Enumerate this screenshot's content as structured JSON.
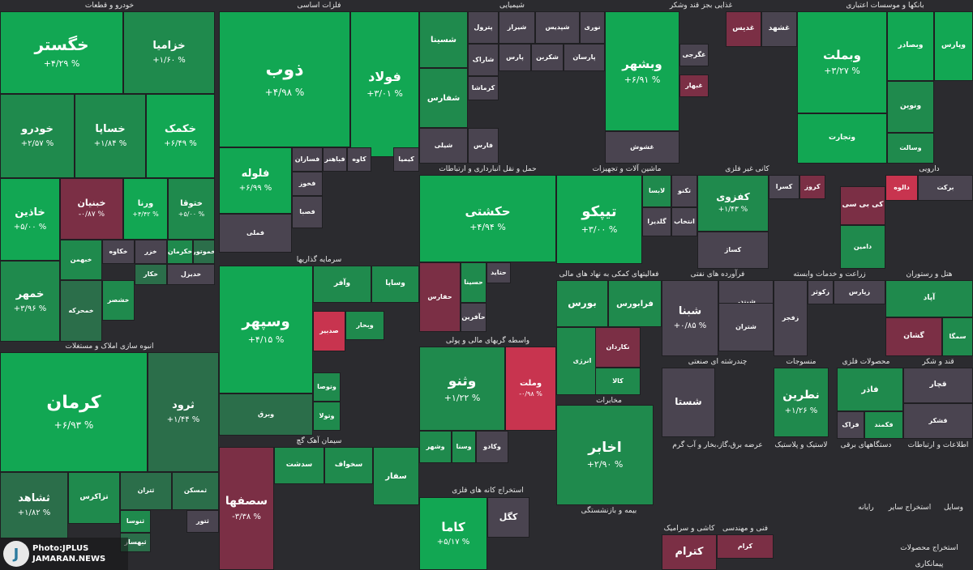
{
  "chart_data": {
    "type": "treemap",
    "colors": {
      "strong_up": "#12a753",
      "mid_up": "#1f8a4d",
      "light_up": "#2b6e4a",
      "neutral": "#4a4450",
      "down": "#7b2f45",
      "strong_down": "#c8344f",
      "background": "#2b2b2f"
    },
    "sectors": [
      {
        "title": "بانکها و موسسات اعتباری"
      },
      {
        "title": "غذایی بجز قند وشکر"
      },
      {
        "title": "شیمیایی"
      },
      {
        "title": "فلزات اساسی"
      },
      {
        "title": "خودرو و قطعات"
      },
      {
        "title": "دارویی"
      },
      {
        "title": "کانی غیر فلزی"
      },
      {
        "title": "ماشین آلات و تجهیزات"
      },
      {
        "title": "حمل و نقل انبارداری و ارتباطات"
      },
      {
        "title": "سرمایه گذاریها"
      },
      {
        "title": "انبوه سازی املاک و مستغلات"
      },
      {
        "title": "هتل و رستوران"
      },
      {
        "title": "زراعت و خدمات وابسته"
      },
      {
        "title": "فرآورده های نفتی"
      },
      {
        "title": "فعالیتهای کمکی به نهاد های مالی"
      },
      {
        "title": "واسطه گریهای مالی و پولی"
      },
      {
        "title": "محصولات فلزی"
      },
      {
        "title": "منسوجات"
      },
      {
        "title": "چندرشته ای صنعتی"
      },
      {
        "title": "قند و شکر"
      },
      {
        "title": "مخابرات"
      },
      {
        "title": "سیمان آهک گچ"
      },
      {
        "title": "اطلاعات و ارتباطات"
      },
      {
        "title": "دستگاههای برقی"
      },
      {
        "title": "لاستیک و پلاستیک"
      },
      {
        "title": "عرضه برق،گاز،بخار و آب گرم"
      },
      {
        "title": "استخراج کانه های فلزی"
      },
      {
        "title": "بیمه و بازنشستگی"
      },
      {
        "title": "رایانه"
      },
      {
        "title": "استخراج سایر"
      },
      {
        "title": "وسایل"
      },
      {
        "title": "کاشی و سرامیک"
      },
      {
        "title": "فنی و مهندسی"
      },
      {
        "title": "استخراج محصولات"
      },
      {
        "title": "پیمانکاری"
      }
    ],
    "tiles": [
      {
        "name": "خگستر",
        "change": "+۴/۲۹ %",
        "color": "strong_up"
      },
      {
        "name": "خزامیا",
        "change": "+۱/۶۰ %",
        "color": "mid_up"
      },
      {
        "name": "خودرو",
        "change": "+۲/۵۷ %",
        "color": "mid_up"
      },
      {
        "name": "خساپا",
        "change": "+۱/۸۴ %",
        "color": "mid_up"
      },
      {
        "name": "خکمک",
        "change": "+۶/۴۹ %",
        "color": "strong_up"
      },
      {
        "name": "خاذین",
        "change": "+۵/۰۰ %",
        "color": "strong_up"
      },
      {
        "name": "خبنیان",
        "change": "-۰/۸۷ %",
        "color": "down"
      },
      {
        "name": "ورنا",
        "change": "+۴/۴۲ %",
        "color": "strong_up"
      },
      {
        "name": "ختوقا",
        "change": "+۵/۰۰ %",
        "color": "mid_up"
      },
      {
        "name": "خمهر",
        "change": "+۳/۹۶ %",
        "color": "mid_up"
      },
      {
        "name": "خبهمن",
        "change": "",
        "color": "mid_up"
      },
      {
        "name": "خکاوه",
        "change": "",
        "color": "neutral"
      },
      {
        "name": "خزر",
        "change": "",
        "color": "neutral"
      },
      {
        "name": "خکرمان",
        "change": "",
        "color": "mid_up"
      },
      {
        "name": "خموتور",
        "change": "",
        "color": "light_up"
      },
      {
        "name": "خکار",
        "change": "",
        "color": "light_up"
      },
      {
        "name": "خدیزل",
        "change": "",
        "color": "neutral"
      },
      {
        "name": "خمحرکه",
        "change": "",
        "color": "light_up"
      },
      {
        "name": "خشصر",
        "change": "",
        "color": "mid_up"
      },
      {
        "name": "ذوب",
        "change": "+۴/۹۸ %",
        "color": "strong_up"
      },
      {
        "name": "فولاد",
        "change": "+۳/۰۱ %",
        "color": "strong_up"
      },
      {
        "name": "فلوله",
        "change": "+۶/۹۹ %",
        "color": "strong_up"
      },
      {
        "name": "فسازان",
        "change": "",
        "color": "neutral"
      },
      {
        "name": "فباهنر",
        "change": "",
        "color": "neutral"
      },
      {
        "name": "کاوه",
        "change": "",
        "color": "neutral"
      },
      {
        "name": "کیمیا",
        "change": "",
        "color": "neutral"
      },
      {
        "name": "فخوز",
        "change": "",
        "color": "neutral"
      },
      {
        "name": "فصبا",
        "change": "",
        "color": "neutral"
      },
      {
        "name": "فملی",
        "change": "",
        "color": "neutral"
      },
      {
        "name": "شسینا",
        "change": "",
        "color": "mid_up"
      },
      {
        "name": "پترول",
        "change": "",
        "color": "neutral"
      },
      {
        "name": "شیراز",
        "change": "",
        "color": "neutral"
      },
      {
        "name": "شپدیس",
        "change": "",
        "color": "neutral"
      },
      {
        "name": "نوری",
        "change": "",
        "color": "neutral"
      },
      {
        "name": "شفارس",
        "change": "",
        "color": "mid_up"
      },
      {
        "name": "شاراک",
        "change": "",
        "color": "neutral"
      },
      {
        "name": "پارس",
        "change": "",
        "color": "neutral"
      },
      {
        "name": "شکربن",
        "change": "",
        "color": "neutral"
      },
      {
        "name": "پارسان",
        "change": "",
        "color": "neutral"
      },
      {
        "name": "کرماشا",
        "change": "",
        "color": "neutral"
      },
      {
        "name": "فارس",
        "change": "",
        "color": "neutral"
      },
      {
        "name": "شیلی",
        "change": "",
        "color": "neutral"
      },
      {
        "name": "وبشهر",
        "change": "+۶/۹۱ %",
        "color": "strong_up"
      },
      {
        "name": "غدیس",
        "change": "",
        "color": "down"
      },
      {
        "name": "غشهد",
        "change": "",
        "color": "neutral"
      },
      {
        "name": "غگرجی",
        "change": "",
        "color": "neutral"
      },
      {
        "name": "غبهار",
        "change": "",
        "color": "down"
      },
      {
        "name": "غشوش",
        "change": "",
        "color": "neutral"
      },
      {
        "name": "وبملت",
        "change": "+۳/۲۷ %",
        "color": "strong_up"
      },
      {
        "name": "وبصادر",
        "change": "",
        "color": "strong_up"
      },
      {
        "name": "وپارس",
        "change": "",
        "color": "strong_up"
      },
      {
        "name": "ونوین",
        "change": "",
        "color": "mid_up"
      },
      {
        "name": "وتجارت",
        "change": "",
        "color": "strong_up"
      },
      {
        "name": "وسالت",
        "change": "",
        "color": "mid_up"
      },
      {
        "name": "حکشتی",
        "change": "+۴/۹۴ %",
        "color": "strong_up"
      },
      {
        "name": "حفارس",
        "change": "",
        "color": "down"
      },
      {
        "name": "حسینا",
        "change": "",
        "color": "mid_up"
      },
      {
        "name": "حتاید",
        "change": "",
        "color": "neutral"
      },
      {
        "name": "حآفرین",
        "change": "",
        "color": "neutral"
      },
      {
        "name": "تیپکو",
        "change": "+۳/۰۰ %",
        "color": "strong_up"
      },
      {
        "name": "لابسا",
        "change": "",
        "color": "mid_up"
      },
      {
        "name": "تکنو",
        "change": "",
        "color": "neutral"
      },
      {
        "name": "گلدیرا",
        "change": "",
        "color": "neutral"
      },
      {
        "name": "انتخاب",
        "change": "",
        "color": "neutral"
      },
      {
        "name": "کفزوی",
        "change": "+۱/۴۳ %",
        "color": "mid_up"
      },
      {
        "name": "کساژ",
        "change": "",
        "color": "neutral"
      },
      {
        "name": "کسرا",
        "change": "",
        "color": "neutral"
      },
      {
        "name": "کروز",
        "change": "",
        "color": "down"
      },
      {
        "name": "دیران",
        "change": "",
        "color": "strong_down"
      },
      {
        "name": "کی بی سی",
        "change": "",
        "color": "down"
      },
      {
        "name": "دامین",
        "change": "",
        "color": "mid_up"
      },
      {
        "name": "برکت",
        "change": "",
        "color": "neutral"
      },
      {
        "name": "دالوه",
        "change": "",
        "color": "strong_down"
      },
      {
        "name": "کرمان",
        "change": "+۶/۹۳ %",
        "color": "strong_up"
      },
      {
        "name": "ثرود",
        "change": "+۱/۴۴ %",
        "color": "light_up"
      },
      {
        "name": "ثشاهد",
        "change": "+۱/۸۲ %",
        "color": "light_up"
      },
      {
        "name": "تزاکرس",
        "change": "",
        "color": "mid_up"
      },
      {
        "name": "ثنوسا",
        "change": "",
        "color": "mid_up"
      },
      {
        "name": "ثتران",
        "change": "",
        "color": "light_up"
      },
      {
        "name": "ثمسکن",
        "change": "",
        "color": "light_up"
      },
      {
        "name": "ثتور",
        "change": "",
        "color": "neutral"
      },
      {
        "name": "ثبهساز",
        "change": "",
        "color": "light_up"
      },
      {
        "name": "وسپهر",
        "change": "+۴/۱۵ %",
        "color": "strong_up"
      },
      {
        "name": "وآفر",
        "change": "",
        "color": "mid_up"
      },
      {
        "name": "وساپا",
        "change": "",
        "color": "mid_up"
      },
      {
        "name": "صدبیر",
        "change": "",
        "color": "strong_down"
      },
      {
        "name": "وبحار",
        "change": "",
        "color": "mid_up"
      },
      {
        "name": "وبرق",
        "change": "",
        "color": "light_up"
      },
      {
        "name": "وتوصا",
        "change": "",
        "color": "mid_up"
      },
      {
        "name": "وتولا",
        "change": "",
        "color": "mid_up"
      },
      {
        "name": "وثنو",
        "change": "+۱/۲۲ %",
        "color": "mid_up"
      },
      {
        "name": "وملت",
        "change": "-۰/۹۸ %",
        "color": "strong_down"
      },
      {
        "name": "وسنا",
        "change": "",
        "color": "mid_up"
      },
      {
        "name": "وشهر",
        "change": "",
        "color": "mid_up"
      },
      {
        "name": "وکادو",
        "change": "",
        "color": "neutral"
      },
      {
        "name": "بورس",
        "change": "",
        "color": "mid_up"
      },
      {
        "name": "فرابورس",
        "change": "",
        "color": "mid_up"
      },
      {
        "name": "اخابر",
        "change": "+۲/۹۰ %",
        "color": "mid_up"
      },
      {
        "name": "انرژی",
        "change": "",
        "color": "mid_up"
      },
      {
        "name": "نکاردان",
        "change": "",
        "color": "down"
      },
      {
        "name": "کالا",
        "change": "",
        "color": "mid_up"
      },
      {
        "name": "شبنا",
        "change": "+۰/۸۵ %",
        "color": "neutral"
      },
      {
        "name": "شبندر",
        "change": "",
        "color": "neutral"
      },
      {
        "name": "شتران",
        "change": "",
        "color": "neutral"
      },
      {
        "name": "زفجر",
        "change": "",
        "color": "neutral"
      },
      {
        "name": "زکوثر",
        "change": "",
        "color": "neutral"
      },
      {
        "name": "زپارس",
        "change": "",
        "color": "neutral"
      },
      {
        "name": "آپاد",
        "change": "",
        "color": "mid_up"
      },
      {
        "name": "گشان",
        "change": "",
        "color": "down"
      },
      {
        "name": "سمگا",
        "change": "",
        "color": "mid_up"
      },
      {
        "name": "شستا",
        "change": "",
        "color": "neutral"
      },
      {
        "name": "نطرین",
        "change": "+۱/۲۶ %",
        "color": "mid_up"
      },
      {
        "name": "فاذر",
        "change": "",
        "color": "mid_up"
      },
      {
        "name": "فکمند",
        "change": "",
        "color": "mid_up"
      },
      {
        "name": "فزاک",
        "change": "",
        "color": "neutral"
      },
      {
        "name": "قچار",
        "change": "",
        "color": "neutral"
      },
      {
        "name": "قشکر",
        "change": "",
        "color": "neutral"
      },
      {
        "name": "سصفها",
        "change": "-۳/۳۸ %",
        "color": "down"
      },
      {
        "name": "سدشت",
        "change": "",
        "color": "mid_up"
      },
      {
        "name": "سخواف",
        "change": "",
        "color": "mid_up"
      },
      {
        "name": "سفار",
        "change": "",
        "color": "mid_up"
      },
      {
        "name": "کاما",
        "change": "+۵/۱۷ %",
        "color": "strong_up"
      },
      {
        "name": "کگل",
        "change": "",
        "color": "neutral"
      },
      {
        "name": "کترام",
        "change": "",
        "color": "down"
      },
      {
        "name": "کرام",
        "change": "",
        "color": "down"
      }
    ],
    "watermark": {
      "logo_letter": "J",
      "line1": "Photo:JPLUS",
      "line2": "JAMARAN.NEWS"
    }
  }
}
